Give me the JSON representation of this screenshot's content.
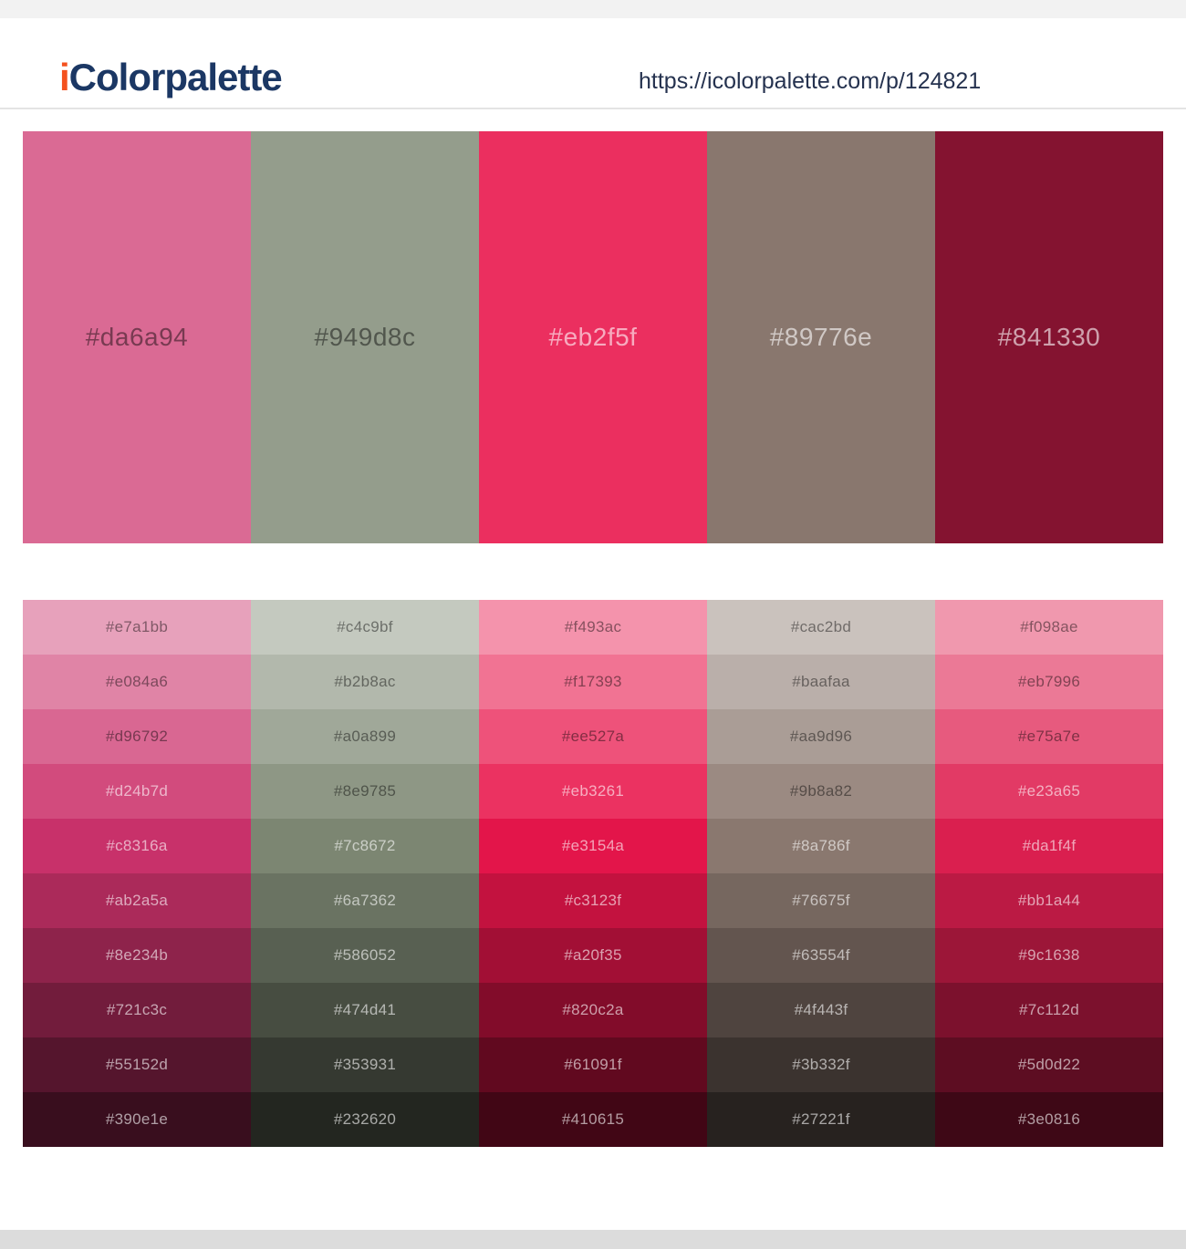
{
  "header": {
    "logo_prefix": "i",
    "logo_rest": "Colorpalette",
    "url": "https://icolorpalette.com/p/124821"
  },
  "palette": {
    "colors": [
      "#da6a94",
      "#949d8c",
      "#eb2f5f",
      "#89776e",
      "#841330"
    ]
  },
  "shades": {
    "rows": [
      [
        "#e7a1bb",
        "#c4c9bf",
        "#f493ac",
        "#cac2bd",
        "#f098ae"
      ],
      [
        "#e084a6",
        "#b2b8ac",
        "#f17393",
        "#baafaa",
        "#eb7996"
      ],
      [
        "#d96792",
        "#a0a899",
        "#ee527a",
        "#aa9d96",
        "#e75a7e"
      ],
      [
        "#d24b7d",
        "#8e9785",
        "#eb3261",
        "#9b8a82",
        "#e23a65"
      ],
      [
        "#c8316a",
        "#7c8672",
        "#e3154a",
        "#8a786f",
        "#da1f4f"
      ],
      [
        "#ab2a5a",
        "#6a7362",
        "#c3123f",
        "#76675f",
        "#bb1a44"
      ],
      [
        "#8e234b",
        "#586052",
        "#a20f35",
        "#63554f",
        "#9c1638"
      ],
      [
        "#721c3c",
        "#474d41",
        "#820c2a",
        "#4f443f",
        "#7c112d"
      ],
      [
        "#55152d",
        "#353931",
        "#61091f",
        "#3b332f",
        "#5d0d22"
      ],
      [
        "#390e1e",
        "#232620",
        "#410615",
        "#27221f",
        "#3e0816"
      ]
    ]
  }
}
